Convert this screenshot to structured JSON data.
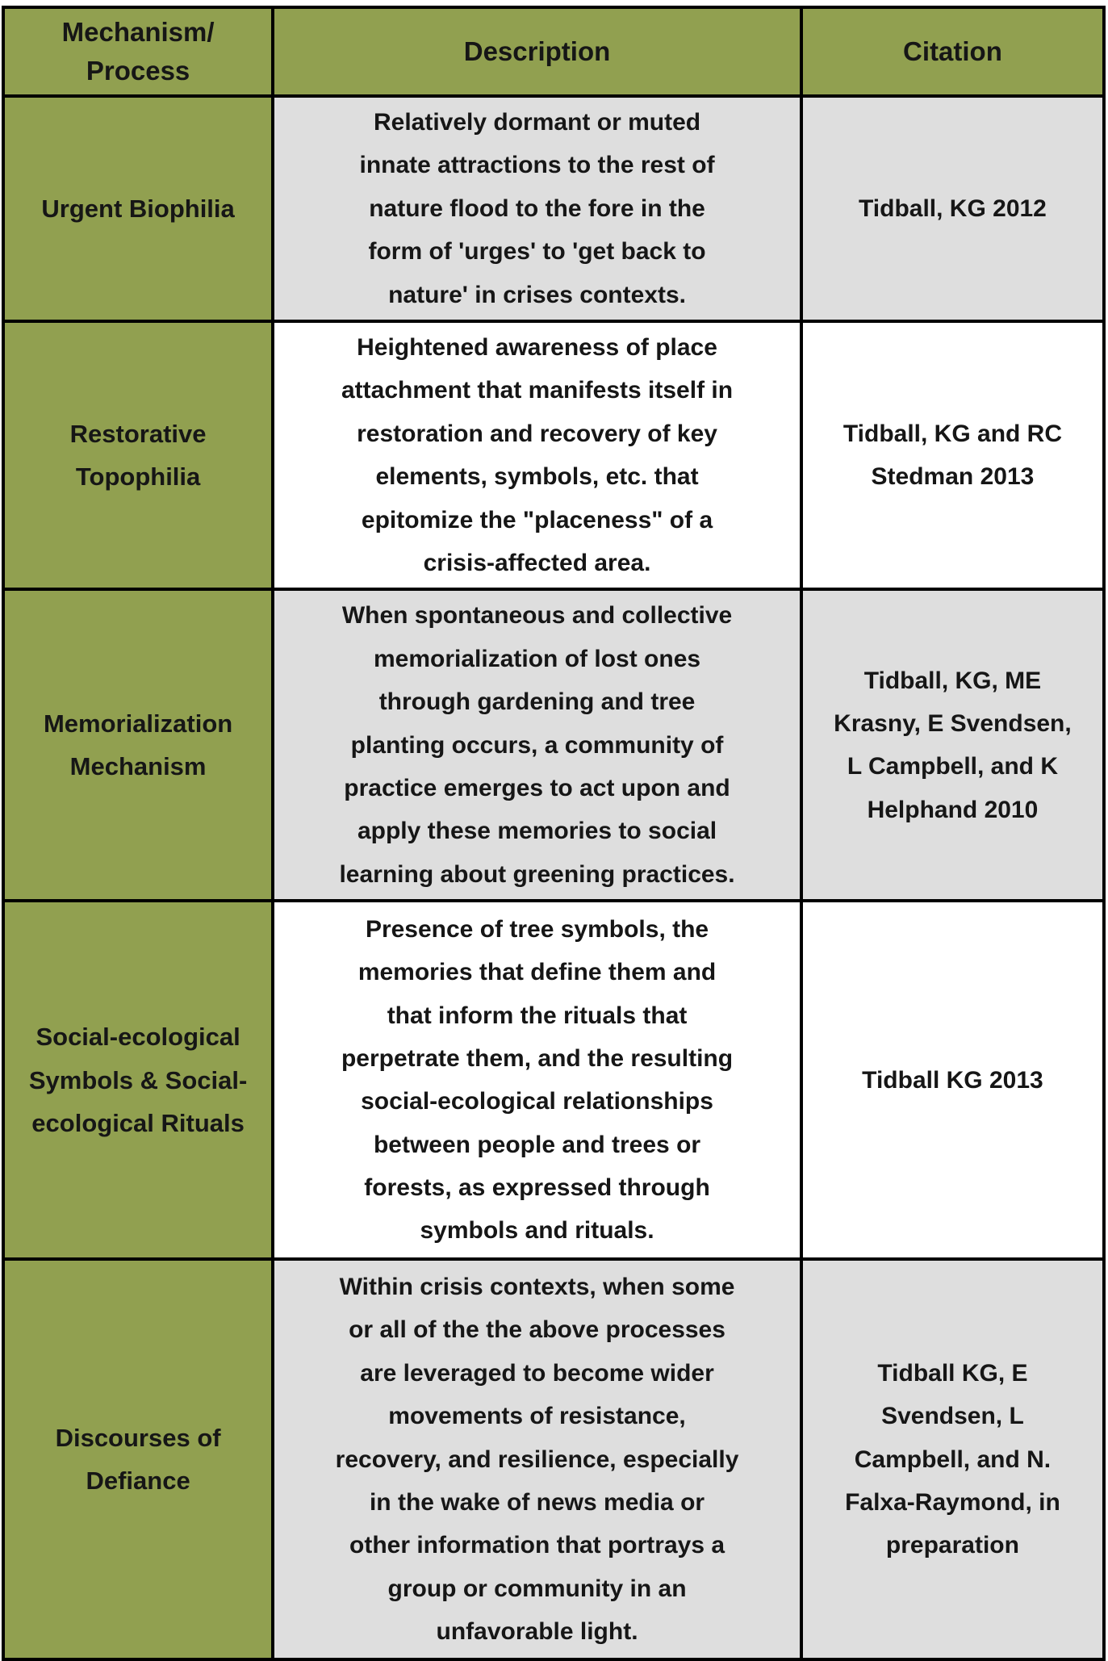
{
  "colors": {
    "header_green": "#91A050",
    "mechanism_column_green": "#91A050",
    "row_gray": "#DEDEDE",
    "row_white": "#FFFFFF",
    "border_black": "#000000",
    "text_black": "#161616",
    "page_background": "#FFFFFF"
  },
  "table": {
    "headers": [
      "Mechanism/\nProcess",
      "Description",
      "Citation"
    ],
    "rows": [
      {
        "mechanism": "Urgent Biophilia",
        "description": "Relatively dormant or muted\ninnate attractions to the rest of\nnature flood to the fore in the\nform of 'urges' to 'get back to\nnature' in crises contexts.",
        "citation": "Tidball, KG 2012"
      },
      {
        "mechanism": "Restorative\nTopophilia",
        "description": "Heightened awareness of place\nattachment that manifests itself in\nrestoration and recovery of key\nelements, symbols, etc. that\nepitomize the \"placeness\" of a\ncrisis-affected area.",
        "citation": "Tidball, KG and RC\nStedman 2013"
      },
      {
        "mechanism": "Memorialization\nMechanism",
        "description": "When spontaneous and collective\nmemorialization of lost ones\nthrough gardening and tree\nplanting occurs, a community of\npractice emerges to act upon and\napply these memories to social\nlearning about greening practices.",
        "citation": "Tidball, KG, ME\nKrasny, E Svendsen,\nL Campbell, and K\nHelphand 2010"
      },
      {
        "mechanism": "Social-ecological\nSymbols & Social-\necological Rituals",
        "description": "Presence of tree symbols, the\nmemories that define them and\nthat inform the rituals that\nperpetrate them, and the resulting\nsocial-ecological relationships\nbetween people and trees or\nforests, as expressed through\nsymbols and rituals.",
        "citation": "Tidball KG 2013"
      },
      {
        "mechanism": "Discourses of\nDefiance",
        "description": "Within crisis contexts, when some\nor all of the the above processes\nare leveraged to become wider\nmovements of resistance,\nrecovery, and resilience, especially\nin the wake of news media or\nother information that portrays a\ngroup or community in an\nunfavorable light.",
        "citation": "Tidball KG, E\nSvendsen, L\nCampbell, and N.\nFalxa-Raymond, in\npreparation"
      }
    ]
  }
}
